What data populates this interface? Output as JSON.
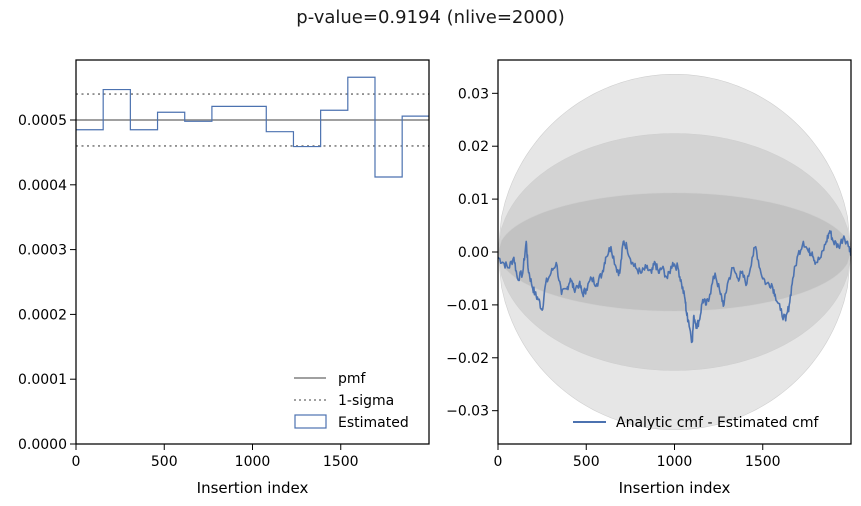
{
  "title": "p-value=0.9194 (nlive=2000)",
  "chart_data": [
    {
      "type": "step",
      "xlabel": "Insertion index",
      "ylabel": "",
      "xlim": [
        0,
        2000
      ],
      "ylim": [
        0,
        0.0005926
      ],
      "xticks": [
        0,
        500,
        1000,
        1500
      ],
      "xtick_labels": [
        "0",
        "500",
        "1000",
        "1500"
      ],
      "yticks": [
        0,
        0.0001,
        0.0002,
        0.0003,
        0.0004,
        0.0005
      ],
      "ytick_labels": [
        "0.0000",
        "0.0001",
        "0.0002",
        "0.0003",
        "0.0004",
        "0.0005"
      ],
      "pmf": 0.0005,
      "sigma_lower": 0.00046,
      "sigma_upper": 0.00054,
      "bin_edges": [
        0,
        154,
        308,
        462,
        616,
        770,
        924,
        1078,
        1232,
        1386,
        1540,
        1694,
        1848,
        2000
      ],
      "values": [
        0.000485,
        0.000547,
        0.000485,
        0.000512,
        0.000498,
        0.000521,
        0.000521,
        0.000482,
        0.000459,
        0.000515,
        0.000566,
        0.000412,
        0.000506
      ],
      "legend_position": "lower-right",
      "legend": [
        "pmf",
        "1-sigma",
        "Estimated"
      ],
      "colors": {
        "pmf": "#808080",
        "sigma": "#808080",
        "estimated": "#4c72b0"
      }
    },
    {
      "type": "line",
      "xlabel": "Insertion index",
      "ylabel": "",
      "xlim": [
        0,
        2000
      ],
      "ylim": [
        -0.0363,
        0.0363
      ],
      "xticks": [
        0,
        500,
        1000,
        1500
      ],
      "xtick_labels": [
        "0",
        "500",
        "1000",
        "1500"
      ],
      "yticks": [
        -0.03,
        -0.02,
        -0.01,
        0.0,
        0.01,
        0.02,
        0.03
      ],
      "ytick_labels": [
        "−0.03",
        "−0.02",
        "−0.01",
        "0.00",
        "0.01",
        "0.02",
        "0.03"
      ],
      "bands_sigma_max": [
        0.0112,
        0.0224,
        0.0336
      ],
      "band_colors": [
        "#e6e6e6",
        "#d3d3d3",
        "#c2c2c2"
      ],
      "series": [
        {
          "name": "Analytic cmf - Estimated cmf",
          "color": "#4c72b0",
          "x": [
            0,
            30,
            60,
            90,
            110,
            140,
            160,
            170,
            190,
            210,
            230,
            250,
            270,
            300,
            330,
            360,
            390,
            410,
            430,
            460,
            480,
            500,
            530,
            560,
            590,
            610,
            640,
            670,
            690,
            710,
            730,
            760,
            780,
            810,
            840,
            870,
            890,
            910,
            930,
            960,
            990,
            1020,
            1040,
            1060,
            1070,
            1080,
            1100,
            1110,
            1125,
            1140,
            1160,
            1180,
            1200,
            1230,
            1260,
            1280,
            1300,
            1330,
            1360,
            1380,
            1410,
            1440,
            1460,
            1490,
            1520,
            1550,
            1570,
            1600,
            1630,
            1650,
            1670,
            1700,
            1730,
            1760,
            1780,
            1800,
            1830,
            1860,
            1880,
            1900,
            1930,
            1960,
            1990,
            2000
          ],
          "y": [
            -0.001,
            -0.002,
            -0.003,
            -0.001,
            -0.005,
            -0.004,
            0.002,
            -0.003,
            -0.006,
            -0.008,
            -0.009,
            -0.011,
            -0.006,
            -0.004,
            -0.002,
            -0.008,
            -0.007,
            -0.005,
            -0.007,
            -0.006,
            -0.008,
            -0.007,
            -0.005,
            -0.006,
            -0.004,
            -0.001,
            0.001,
            -0.003,
            -0.004,
            0.002,
            0.001,
            -0.002,
            -0.003,
            -0.004,
            -0.003,
            -0.004,
            -0.002,
            -0.004,
            -0.003,
            -0.005,
            -0.002,
            -0.003,
            -0.006,
            -0.009,
            -0.012,
            -0.013,
            -0.017,
            -0.012,
            -0.014,
            -0.013,
            -0.009,
            -0.01,
            -0.008,
            -0.004,
            -0.008,
            -0.01,
            -0.006,
            -0.003,
            -0.005,
            -0.004,
            -0.006,
            -0.001,
            0.001,
            -0.004,
            -0.006,
            -0.006,
            -0.008,
            -0.011,
            -0.013,
            -0.01,
            -0.005,
            -0.0005,
            0.002,
            0.0,
            0.0,
            -0.002,
            -0.001,
            0.002,
            0.004,
            0.002,
            0.001,
            0.003,
            0.001,
            0.0
          ]
        }
      ],
      "legend_position": "bottom-right",
      "legend": [
        "Analytic cmf - Estimated cmf"
      ]
    }
  ]
}
